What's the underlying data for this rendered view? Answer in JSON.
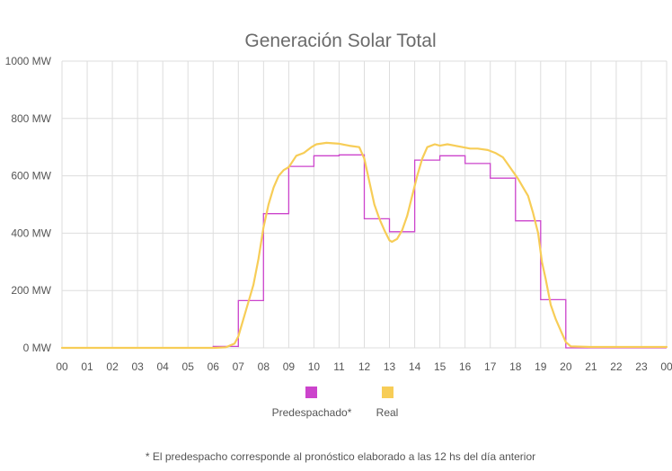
{
  "chart_data": {
    "type": "line",
    "title": "Generación Solar Total",
    "xlabel": "",
    "ylabel": "",
    "ylim": [
      0,
      1000
    ],
    "xlim": [
      0,
      24
    ],
    "grid": true,
    "legend_position": "bottom",
    "y_ticks": [
      {
        "value": 0,
        "label": "0 MW"
      },
      {
        "value": 200,
        "label": "200 MW"
      },
      {
        "value": 400,
        "label": "400 MW"
      },
      {
        "value": 600,
        "label": "600 MW"
      },
      {
        "value": 800,
        "label": "800 MW"
      },
      {
        "value": 1000,
        "label": "1000 MW"
      }
    ],
    "x_ticks": [
      "00",
      "01",
      "02",
      "03",
      "04",
      "05",
      "06",
      "07",
      "08",
      "09",
      "10",
      "11",
      "12",
      "13",
      "14",
      "15",
      "16",
      "17",
      "18",
      "19",
      "20",
      "21",
      "22",
      "23",
      "00"
    ],
    "series": [
      {
        "name": "Predespachado*",
        "color": "#cc44cc",
        "style": "step",
        "hours": [
          0,
          1,
          2,
          3,
          4,
          5,
          6,
          7,
          8,
          9,
          10,
          11,
          12,
          13,
          14,
          15,
          16,
          17,
          18,
          19,
          20,
          21,
          22,
          23
        ],
        "values": [
          0,
          0,
          0,
          0,
          0,
          0,
          5,
          165,
          468,
          633,
          670,
          673,
          450,
          405,
          655,
          670,
          643,
          592,
          443,
          168,
          0,
          0,
          0,
          0
        ]
      },
      {
        "name": "Real",
        "color": "#f7cd57",
        "style": "line",
        "x": [
          0,
          6,
          6.5,
          6.85,
          7,
          7.2,
          7.4,
          7.6,
          7.8,
          8,
          8.2,
          8.4,
          8.6,
          8.8,
          9,
          9.3,
          9.6,
          9.9,
          10.1,
          10.5,
          11,
          11.4,
          11.8,
          12,
          12.2,
          12.4,
          12.6,
          12.8,
          13,
          13.1,
          13.3,
          13.5,
          13.7,
          13.9,
          14.1,
          14.3,
          14.5,
          14.8,
          15,
          15.3,
          15.6,
          15.9,
          16.2,
          16.5,
          16.9,
          17.2,
          17.5,
          17.7,
          17.9,
          18.1,
          18.3,
          18.5,
          18.7,
          18.9,
          19.05,
          19.2,
          19.4,
          19.6,
          19.8,
          20,
          20.2,
          21,
          24
        ],
        "y": [
          0,
          0,
          2,
          15,
          40,
          100,
          160,
          220,
          310,
          420,
          500,
          560,
          600,
          620,
          630,
          670,
          680,
          700,
          710,
          715,
          712,
          705,
          700,
          660,
          580,
          500,
          450,
          410,
          375,
          370,
          380,
          410,
          460,
          530,
          600,
          660,
          700,
          710,
          705,
          710,
          705,
          700,
          695,
          695,
          690,
          680,
          665,
          640,
          615,
          590,
          560,
          530,
          470,
          400,
          300,
          240,
          150,
          100,
          60,
          20,
          5,
          3,
          3
        ]
      }
    ],
    "footnote": "* El predespacho corresponde al pronóstico elaborado a las 12 hs del día anterior"
  }
}
